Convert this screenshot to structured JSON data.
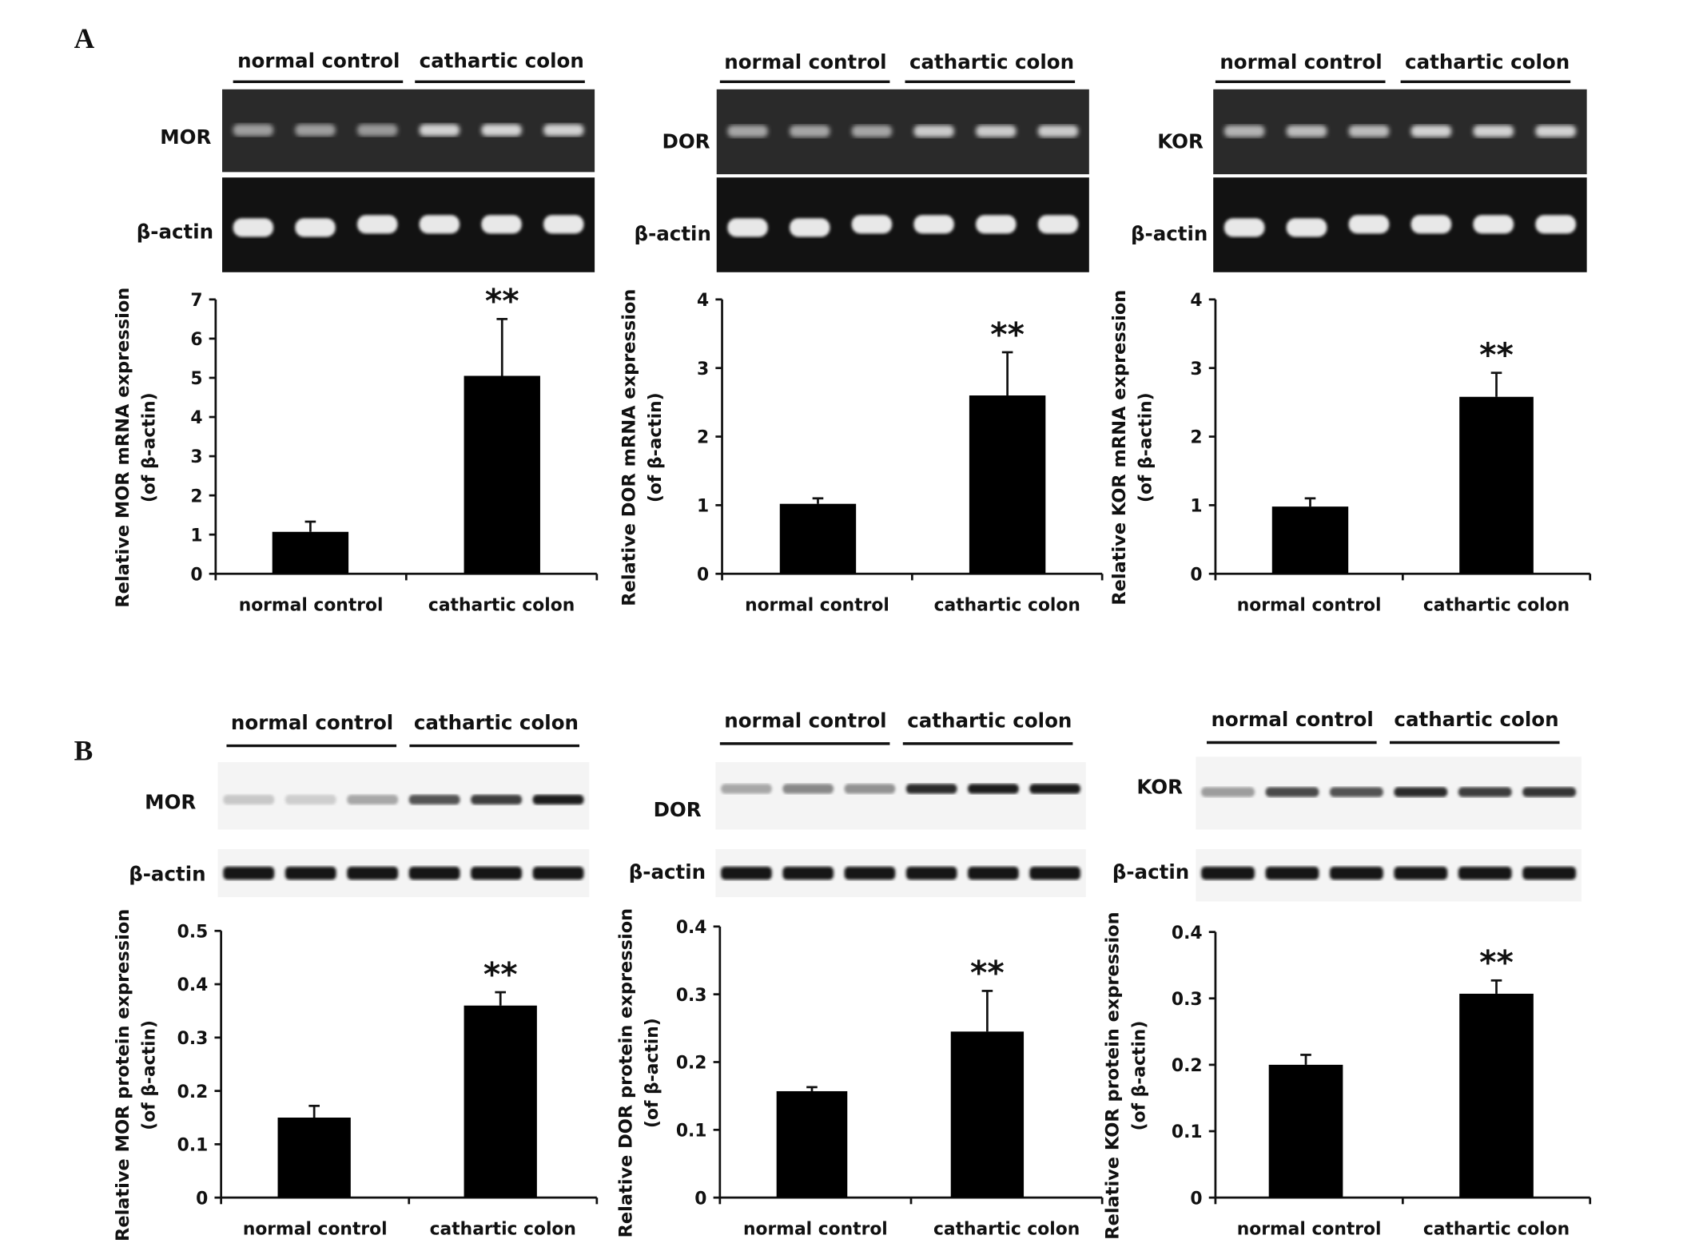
{
  "panel_labels": [
    "A",
    "B"
  ],
  "blots": [
    {
      "panel": "A",
      "type": "gel",
      "groups": [
        "normal control",
        "cathartic colon"
      ],
      "target_label": "MOR",
      "loading_label": "β-actin",
      "target_intensity": [
        0.45,
        0.45,
        0.42,
        0.8,
        0.82,
        0.8
      ]
    },
    {
      "panel": "A",
      "type": "gel",
      "groups": [
        "normal control",
        "cathartic colon"
      ],
      "target_label": "DOR",
      "loading_label": "β-actin",
      "target_intensity": [
        0.5,
        0.5,
        0.5,
        0.75,
        0.75,
        0.75
      ]
    },
    {
      "panel": "A",
      "type": "gel",
      "groups": [
        "normal control",
        "cathartic colon"
      ],
      "target_label": "KOR",
      "loading_label": "β-actin",
      "target_intensity": [
        0.6,
        0.65,
        0.65,
        0.8,
        0.8,
        0.8
      ]
    },
    {
      "panel": "B",
      "type": "western",
      "groups": [
        "normal control",
        "cathartic colon"
      ],
      "target_label": "MOR",
      "loading_label": "β-actin",
      "target_intensity": [
        0.15,
        0.12,
        0.3,
        0.7,
        0.8,
        0.95
      ]
    },
    {
      "panel": "B",
      "type": "western",
      "groups": [
        "normal control",
        "cathartic colon"
      ],
      "target_label": "DOR",
      "loading_label": "β-actin",
      "target_intensity": [
        0.3,
        0.45,
        0.4,
        0.9,
        0.95,
        0.95
      ]
    },
    {
      "panel": "B",
      "type": "western",
      "groups": [
        "normal control",
        "cathartic colon"
      ],
      "target_label": "KOR",
      "loading_label": "β-actin",
      "target_intensity": [
        0.35,
        0.75,
        0.7,
        0.9,
        0.8,
        0.85
      ]
    }
  ],
  "chart_data": [
    {
      "type": "bar",
      "panel": "A",
      "ylabel": [
        "Relative MOR mRNA expression",
        "(of β-actin)"
      ],
      "categories": [
        "normal control",
        "cathartic colon"
      ],
      "values": [
        1.07,
        5.05
      ],
      "error_upper": [
        1.33,
        6.5
      ],
      "ylim": [
        0,
        7
      ],
      "yticks": [
        "0",
        "1",
        "2",
        "3",
        "4",
        "5",
        "6",
        "7"
      ],
      "annotations": [
        "",
        "**"
      ]
    },
    {
      "type": "bar",
      "panel": "A",
      "ylabel": [
        "Relative DOR mRNA expression",
        "(of β-actin)"
      ],
      "categories": [
        "normal control",
        "cathartic colon"
      ],
      "values": [
        1.02,
        2.6
      ],
      "error_upper": [
        1.1,
        3.23
      ],
      "ylim": [
        0,
        4
      ],
      "yticks": [
        "0",
        "1",
        "2",
        "3",
        "4"
      ],
      "annotations": [
        "",
        "**"
      ]
    },
    {
      "type": "bar",
      "panel": "A",
      "ylabel": [
        "Relative KOR mRNA expression",
        "(of β-actin)"
      ],
      "categories": [
        "normal control",
        "cathartic colon"
      ],
      "values": [
        0.98,
        2.58
      ],
      "error_upper": [
        1.1,
        2.93
      ],
      "ylim": [
        0,
        4
      ],
      "yticks": [
        "0",
        "1",
        "2",
        "3",
        "4"
      ],
      "annotations": [
        "",
        "**"
      ]
    },
    {
      "type": "bar",
      "panel": "B",
      "ylabel": [
        "Relative MOR protein expression",
        "(of β-actin)"
      ],
      "categories": [
        "normal control",
        "cathartic colon"
      ],
      "values": [
        0.15,
        0.36
      ],
      "error_upper": [
        0.172,
        0.385
      ],
      "ylim": [
        0,
        0.5
      ],
      "yticks": [
        "0",
        "0.1",
        "0.2",
        "0.3",
        "0.4",
        "0.5"
      ],
      "annotations": [
        "",
        "**"
      ]
    },
    {
      "type": "bar",
      "panel": "B",
      "ylabel": [
        "Relative DOR protein expression",
        "(of β-actin)"
      ],
      "categories": [
        "normal control",
        "cathartic colon"
      ],
      "values": [
        0.157,
        0.245
      ],
      "error_upper": [
        0.163,
        0.305
      ],
      "ylim": [
        0,
        0.4
      ],
      "yticks": [
        "0",
        "0.1",
        "0.2",
        "0.3",
        "0.4"
      ],
      "annotations": [
        "",
        "**"
      ]
    },
    {
      "type": "bar",
      "panel": "B",
      "ylabel": [
        "Relative KOR protein expression",
        "(of β-actin)"
      ],
      "categories": [
        "normal control",
        "cathartic colon"
      ],
      "values": [
        0.2,
        0.307
      ],
      "error_upper": [
        0.215,
        0.327
      ],
      "ylim": [
        0,
        0.4
      ],
      "yticks": [
        "0",
        "0.1",
        "0.2",
        "0.3",
        "0.4"
      ],
      "annotations": [
        "",
        "**"
      ]
    }
  ]
}
